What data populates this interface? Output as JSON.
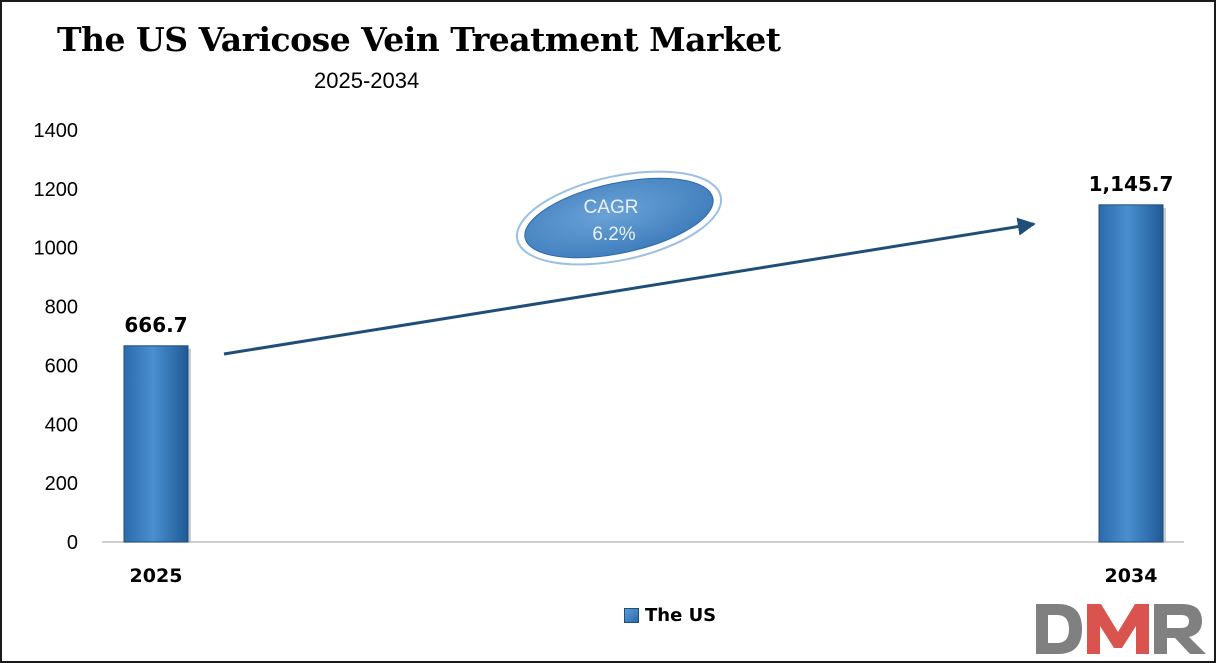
{
  "chart_data": {
    "type": "bar",
    "title": "The US Varicose Vein Treatment Market",
    "subtitle": "2025-2034",
    "categories": [
      "2025",
      "2034"
    ],
    "series": [
      {
        "name": "The US",
        "values": [
          666.7,
          1145.7
        ],
        "data_labels": [
          "666.7",
          "1,145.7"
        ]
      }
    ],
    "ylim": [
      0,
      1400
    ],
    "yticks": [
      "0",
      "200",
      "400",
      "600",
      "800",
      "1000",
      "1200",
      "1400"
    ],
    "grid": false,
    "legend_position": "bottom",
    "annotation": {
      "line1": "CAGR",
      "line2": "6.2%"
    },
    "colors": {
      "bar": "#2e75b6",
      "bar_light": "#5b9bd5",
      "arrow": "#1f4e79",
      "logo_gray": "#808080",
      "logo_red": "#d9534f"
    }
  },
  "logo": {
    "text": "DMR"
  }
}
